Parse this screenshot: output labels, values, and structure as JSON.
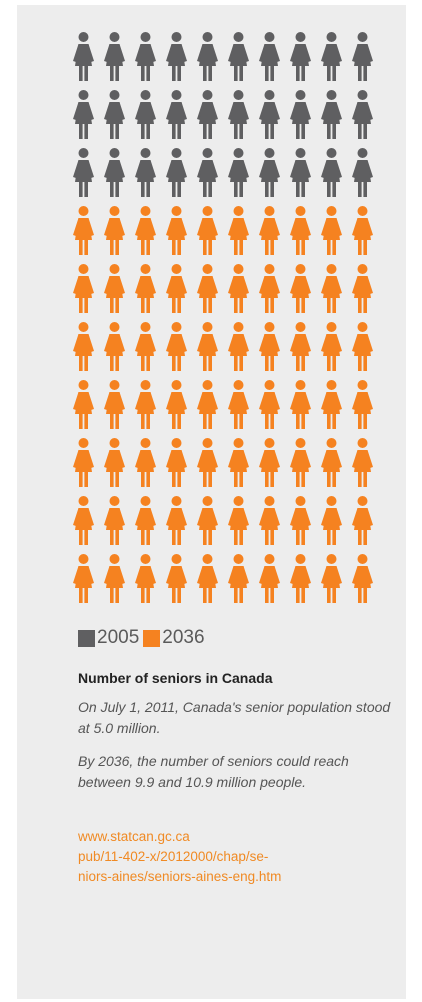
{
  "chart_data": {
    "type": "pictogram",
    "unit": "person",
    "grid_columns": 10,
    "series": [
      {
        "name": "2005",
        "count": 30,
        "color": "#5f5f61"
      },
      {
        "name": "2036",
        "count": 70,
        "color": "#f58220"
      }
    ],
    "legend": {
      "placement": "bottom-left",
      "items": [
        {
          "label": "2005",
          "color": "#5f5f61"
        },
        {
          "label": "2036",
          "color": "#f58220"
        }
      ]
    },
    "title": "Number of seniors in Canada",
    "notes": [
      "On July 1, 2011, Canada's senior population stood at 5.0 million.",
      "By 2036, the number of seniors could reach between 9.9 and 10.9 million people."
    ]
  },
  "source": {
    "lines": [
      "www.statcan.gc.ca",
      "pub/11-402-x/2012000/chap/se-",
      "niors-aines/seniors-aines-eng.htm"
    ]
  }
}
